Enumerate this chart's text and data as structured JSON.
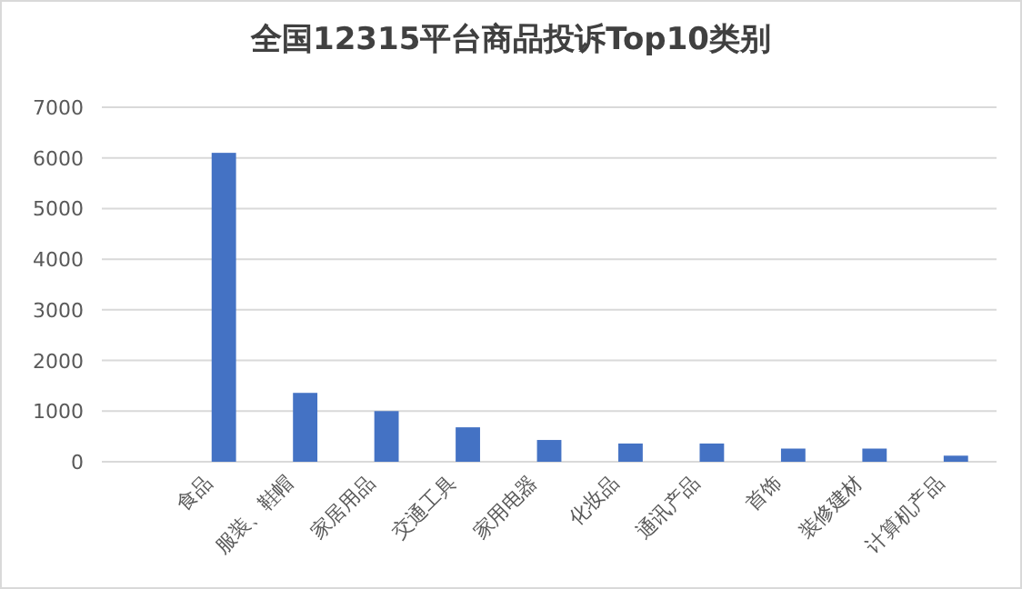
{
  "chart_data": {
    "type": "bar",
    "title": "全国12315平台商品投诉Top10类别",
    "categories": [
      null,
      "食品",
      "服装、鞋帽",
      "家居用品",
      "交通工具",
      "家用电器",
      "化妆品",
      "通讯产品",
      "首饰",
      "装修建材",
      "计算机产品"
    ],
    "values": [
      null,
      6100,
      1360,
      1000,
      680,
      430,
      360,
      360,
      260,
      260,
      120
    ],
    "color": "#4472c4",
    "ylim": [
      0,
      7000
    ],
    "yticks": [
      0,
      1000,
      2000,
      3000,
      4000,
      5000,
      6000,
      7000
    ],
    "grid": "y"
  }
}
